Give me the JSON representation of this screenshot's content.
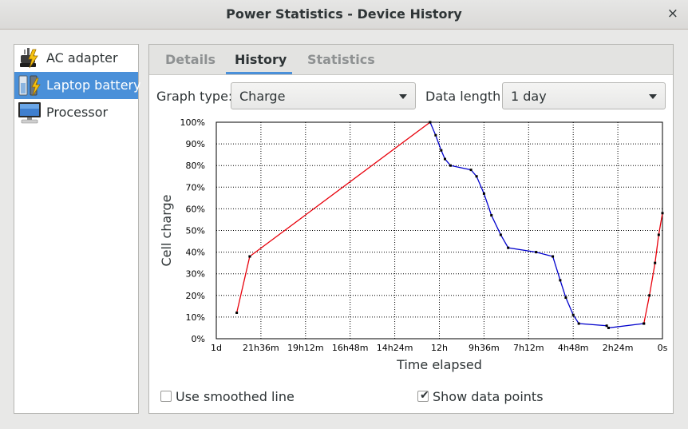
{
  "window": {
    "title": "Power Statistics - Device History",
    "close_glyph": "×"
  },
  "sidebar": {
    "items": [
      {
        "label": "AC adapter",
        "icon": "ac-adapter-icon",
        "selected": false
      },
      {
        "label": "Laptop battery",
        "icon": "laptop-battery-icon",
        "selected": true
      },
      {
        "label": "Processor",
        "icon": "processor-icon",
        "selected": false
      }
    ]
  },
  "tabs": [
    {
      "label": "Details",
      "active": false
    },
    {
      "label": "History",
      "active": true
    },
    {
      "label": "Statistics",
      "active": false
    }
  ],
  "controls": {
    "graph_type_label": "Graph type:",
    "graph_type_value": "Charge",
    "data_length_label": "Data length:",
    "data_length_value": "1 day"
  },
  "options": {
    "smoothed": {
      "label": "Use smoothed line",
      "checked": false
    },
    "show_points": {
      "label": "Show data points",
      "checked": true,
      "check_glyph": "✔"
    }
  },
  "colors": {
    "accent": "#4a90d9",
    "charging": "#e8000b",
    "discharging": "#0000cc",
    "points": "#000000"
  },
  "chart_data": {
    "type": "line",
    "xlabel": "Time elapsed",
    "ylabel": "Cell charge",
    "x_ticks": [
      "1d",
      "21h36m",
      "19h12m",
      "16h48m",
      "14h24m",
      "12h",
      "9h36m",
      "7h12m",
      "4h48m",
      "2h24m",
      "0s"
    ],
    "y_ticks": [
      "0%",
      "10%",
      "20%",
      "30%",
      "40%",
      "50%",
      "60%",
      "70%",
      "80%",
      "90%",
      "100%"
    ],
    "x_unit": "hours_elapsed",
    "xlim": [
      24,
      0
    ],
    "ylim": [
      0,
      100
    ],
    "grid": true,
    "series": [
      {
        "state": "charging",
        "color": "#e8000b",
        "points": [
          [
            22.9,
            12
          ],
          [
            22.2,
            38
          ]
        ]
      },
      {
        "state": "charging",
        "color": "#e8000b",
        "points": [
          [
            22.2,
            38
          ],
          [
            12.5,
            100
          ]
        ]
      },
      {
        "state": "discharging",
        "color": "#0000cc",
        "points": [
          [
            12.5,
            100
          ],
          [
            12.2,
            94
          ],
          [
            11.9,
            87
          ],
          [
            11.7,
            83
          ],
          [
            11.4,
            80
          ],
          [
            10.3,
            78
          ],
          [
            10.0,
            75
          ],
          [
            9.6,
            67
          ],
          [
            9.2,
            57
          ],
          [
            8.7,
            48
          ],
          [
            8.3,
            42
          ],
          [
            6.8,
            40
          ],
          [
            5.9,
            38
          ],
          [
            5.5,
            27
          ],
          [
            5.2,
            19
          ],
          [
            4.8,
            11
          ],
          [
            4.5,
            7
          ],
          [
            3.0,
            6
          ],
          [
            2.9,
            5
          ],
          [
            1.0,
            7
          ]
        ]
      },
      {
        "state": "charging",
        "color": "#e8000b",
        "points": [
          [
            1.0,
            7
          ],
          [
            0.7,
            20
          ],
          [
            0.4,
            35
          ],
          [
            0.2,
            48
          ],
          [
            0.0,
            58
          ]
        ]
      }
    ]
  }
}
